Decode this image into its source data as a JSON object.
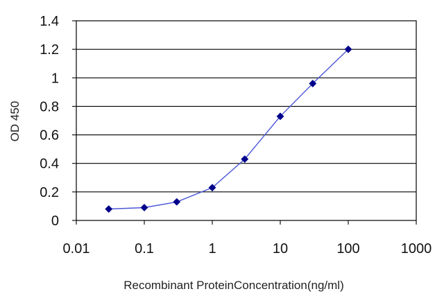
{
  "chart_data": {
    "type": "line",
    "title": "",
    "xlabel": "Recombinant ProteinConcentration(ng/ml)",
    "ylabel": "OD 450",
    "x_scale": "log",
    "xlim": [
      0.01,
      1000
    ],
    "ylim": [
      0,
      1.4
    ],
    "x_ticks": [
      0.01,
      0.1,
      1,
      10,
      100,
      1000
    ],
    "x_tick_labels": [
      "0.01",
      "0.1",
      "1",
      "10",
      "100",
      "1000"
    ],
    "y_ticks": [
      0,
      0.2,
      0.4,
      0.6,
      0.8,
      1,
      1.2,
      1.4
    ],
    "y_tick_labels": [
      "0",
      "0.2",
      "0.4",
      "0.6",
      "0.8",
      "1",
      "1.2",
      "1.4"
    ],
    "grid": "horizontal",
    "legend": "none",
    "series": [
      {
        "x": [
          0.03,
          0.1,
          0.3,
          1,
          3,
          10,
          30,
          100
        ],
        "y": [
          0.08,
          0.09,
          0.13,
          0.23,
          0.43,
          0.73,
          0.96,
          1.2
        ],
        "color": "#00008b",
        "line_color": "#4a57d6",
        "marker": "diamond"
      }
    ]
  }
}
